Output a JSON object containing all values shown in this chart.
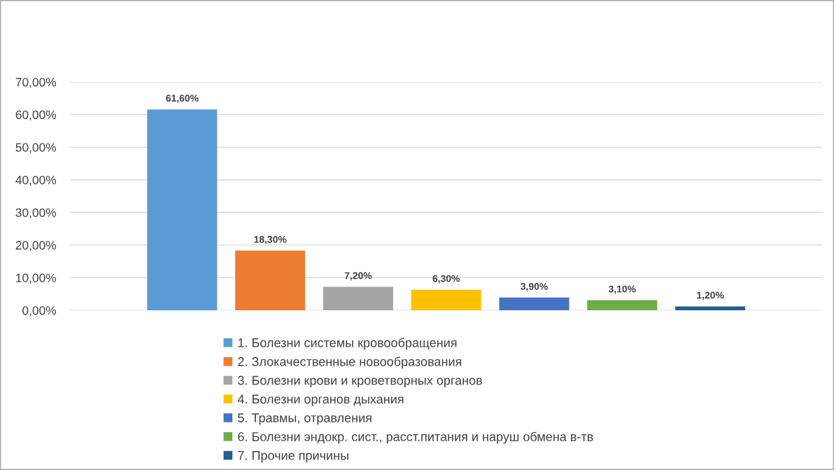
{
  "chart_data": {
    "type": "bar",
    "categories": [
      null
    ],
    "series": [
      {
        "name": "1. Болезни системы кровообращения",
        "color": "#5b9bd5",
        "values": [
          61.6
        ],
        "value_labels": [
          "61,60%"
        ]
      },
      {
        "name": "2. Злокачественные новообразования",
        "color": "#ed7d31",
        "values": [
          18.3
        ],
        "value_labels": [
          "18,30%"
        ]
      },
      {
        "name": "3. Болезни крови и кроветворных органов",
        "color": "#a5a5a5",
        "values": [
          7.2
        ],
        "value_labels": [
          "7,20%"
        ]
      },
      {
        "name": "4. Болезни органов дыхания",
        "color": "#ffc000",
        "values": [
          6.3
        ],
        "value_labels": [
          "6,30%"
        ]
      },
      {
        "name": "5. Травмы, отравления",
        "color": "#4472c4",
        "values": [
          3.9
        ],
        "value_labels": [
          "3,90%"
        ]
      },
      {
        "name": "6. Болезни эндокр. сист., расст.питания и наруш обмена в-тв",
        "color": "#70ad47",
        "values": [
          3.1
        ],
        "value_labels": [
          "3,10%"
        ]
      },
      {
        "name": "7. Прочие причины",
        "color": "#255e91",
        "values": [
          1.2
        ],
        "value_labels": [
          "1,20%"
        ]
      }
    ],
    "ylim": [
      0,
      70
    ],
    "yticks": [
      {
        "value": 0,
        "label": "0,00%"
      },
      {
        "value": 10,
        "label": "10,00%"
      },
      {
        "value": 20,
        "label": "20,00%"
      },
      {
        "value": 30,
        "label": "30,00%"
      },
      {
        "value": 40,
        "label": "40,00%"
      },
      {
        "value": 50,
        "label": "50,00%"
      },
      {
        "value": 60,
        "label": "60,00%"
      },
      {
        "value": 70,
        "label": "70,00%"
      }
    ],
    "grid": "y",
    "legend": "bottom"
  }
}
